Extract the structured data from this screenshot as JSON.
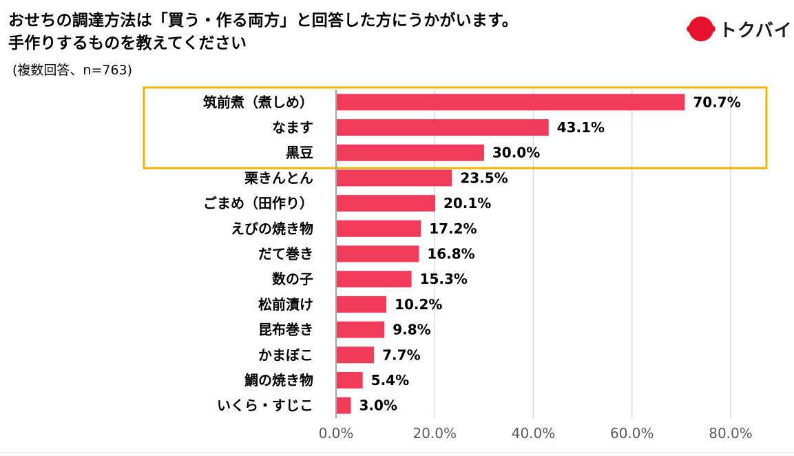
{
  "title": {
    "line1": "おせちの調達方法は「買う・作る両方」と回答した方にうかがいます。",
    "line2": "手作りするものを教えてください"
  },
  "subtitle": "(複数回答、n=763)",
  "brand": {
    "name": "トクバイ",
    "color": "#e8112d"
  },
  "chart_data": {
    "type": "bar",
    "orientation": "horizontal",
    "title": "手作りするものを教えてください",
    "categories": [
      "筑前煮（煮しめ）",
      "なます",
      "黒豆",
      "栗きんとん",
      "ごまめ（田作り）",
      "えびの焼き物",
      "だて巻き",
      "数の子",
      "松前漬け",
      "昆布巻き",
      "かまぼこ",
      "鯛の焼き物",
      "いくら・すじこ"
    ],
    "values": [
      70.7,
      43.1,
      30.0,
      23.5,
      20.1,
      17.2,
      16.8,
      15.3,
      10.2,
      9.8,
      7.7,
      5.4,
      3.0
    ],
    "value_labels": [
      "70.7%",
      "43.1%",
      "30.0%",
      "23.5%",
      "20.1%",
      "17.2%",
      "16.8%",
      "15.3%",
      "10.2%",
      "9.8%",
      "7.7%",
      "5.4%",
      "3.0%"
    ],
    "xlim": [
      0,
      80
    ],
    "xticks": [
      0,
      20,
      40,
      60,
      80
    ],
    "xtick_labels": [
      "0.0%",
      "20.0%",
      "40.0%",
      "60.0%",
      "80.0%"
    ],
    "grid": true,
    "highlighted_categories": [
      "筑前煮（煮しめ）",
      "なます",
      "黒豆"
    ],
    "bar_color": "#f03c5a",
    "highlight_color": "#f0b400",
    "grid_color": "#d9d9d9",
    "axis_color": "#a6a6a6"
  }
}
